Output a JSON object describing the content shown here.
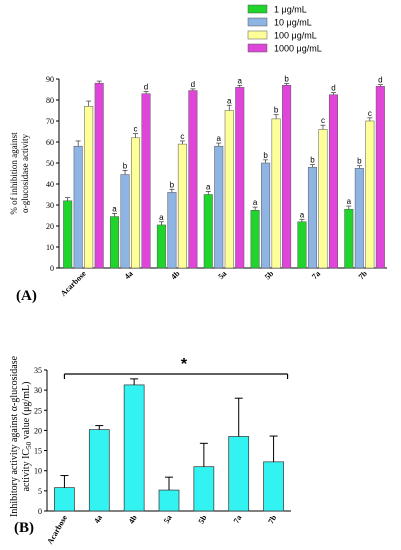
{
  "colors": {
    "s1": "#1fd42a",
    "s10": "#8db4e2",
    "s100": "#ffff99",
    "s1000": "#e045d9",
    "cyan": "#33f2f2"
  },
  "panel_a_label": "(A)",
  "panel_b_label": "(B)",
  "chart_data": [
    {
      "type": "bar",
      "ylabel": "% of inhibition against α-glucosidase activity",
      "ylim": [
        0,
        90
      ],
      "yticks": [
        0,
        10,
        20,
        30,
        40,
        50,
        60,
        70,
        80,
        90
      ],
      "categories": [
        "Acarbose",
        "4a",
        "4b",
        "5a",
        "5b",
        "7a",
        "7b"
      ],
      "legend_position": "top-right",
      "series": [
        {
          "name": "1 μg/mL",
          "values": [
            32,
            24.5,
            20.5,
            35,
            27.5,
            22,
            28
          ],
          "errors": [
            1.5,
            1.5,
            1.5,
            1.5,
            1.5,
            1.2,
            1.5
          ],
          "letters": [
            "",
            "a",
            "a",
            "a",
            "a",
            "a",
            "a"
          ]
        },
        {
          "name": "10 μg/mL",
          "values": [
            58,
            44.5,
            36,
            58,
            50,
            48,
            47.5
          ],
          "errors": [
            2.5,
            2,
            1.5,
            1.5,
            1.5,
            1.2,
            1.2
          ],
          "letters": [
            "",
            "b",
            "b",
            "a",
            "b",
            "b",
            "b"
          ]
        },
        {
          "name": "100 μg/mL",
          "values": [
            77,
            62,
            59,
            75,
            71,
            66,
            70
          ],
          "errors": [
            2.5,
            2,
            1.5,
            2.5,
            2,
            2,
            1.5
          ],
          "letters": [
            "",
            "c",
            "c",
            "a",
            "b",
            "c",
            "c"
          ]
        },
        {
          "name": "1000 μg/mL",
          "values": [
            88,
            83,
            84.5,
            86,
            87,
            82.5,
            86.5
          ],
          "errors": [
            1,
            1,
            0.8,
            1,
            0.8,
            1,
            0.8
          ],
          "letters": [
            "",
            "d",
            "d",
            "a",
            "b",
            "d",
            "d"
          ]
        }
      ]
    },
    {
      "type": "bar",
      "ylabel": "Inhibitory activity against α-glucosidase activity IC50 value (μg/mL)",
      "ylabel_line1": "Inhibitory activity against α-glucosidase",
      "ylabel_line2_pre": "activity IC",
      "ylabel_sub": "50",
      "ylabel_line2_post": " value (μg/mL)",
      "ylim": [
        0,
        35
      ],
      "yticks": [
        0,
        5,
        10,
        15,
        20,
        25,
        30,
        35
      ],
      "categories": [
        "Acarbose",
        "4a",
        "4b",
        "5a",
        "5b",
        "7a",
        "7b"
      ],
      "values": [
        5.8,
        20.2,
        31.3,
        5.2,
        11,
        18.5,
        12.2
      ],
      "errors": [
        3,
        1,
        1.5,
        3.2,
        5.8,
        9.5,
        6.4
      ],
      "significance": "*"
    }
  ]
}
